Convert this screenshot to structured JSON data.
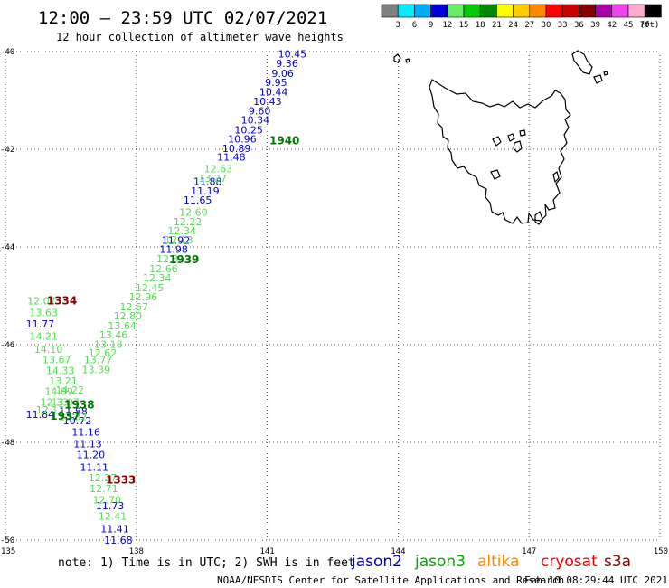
{
  "header": {
    "title": "12:00 – 23:59 UTC 02/07/2021",
    "subtitle": "12 hour collection of altimeter wave heights"
  },
  "colorbar": {
    "labels": [
      "3",
      "6",
      "9",
      "12",
      "15",
      "18",
      "21",
      "24",
      "27",
      "30",
      "33",
      "36",
      "39",
      "42",
      "45",
      "70"
    ],
    "unit": "(ft)",
    "colors": [
      "#7f7f7f",
      "#00eeff",
      "#00aaff",
      "#0000dd",
      "#66ee66",
      "#00cc00",
      "#008800",
      "#ffff00",
      "#ffcc00",
      "#ff8800",
      "#ff0000",
      "#cc0000",
      "#880000",
      "#aa00aa",
      "#ee44ee",
      "#ffaacc",
      "#000000"
    ]
  },
  "axes": {
    "lat_ticks": [
      "-40",
      "-42",
      "-44",
      "-46",
      "-48",
      "-50"
    ],
    "lon_ticks": [
      "135",
      "138",
      "141",
      "144",
      "147",
      "150"
    ]
  },
  "chart_data": {
    "type": "map",
    "lat_range": [
      -50,
      -40
    ],
    "lon_range": [
      135,
      150
    ],
    "point_series": [
      {
        "satellite": "jason2",
        "color": "#0000dd",
        "points": [
          {
            "lon": 141.25,
            "lat": -40.05,
            "v": "10.45"
          },
          {
            "lon": 141.2,
            "lat": -40.24,
            "v": "9.36"
          },
          {
            "lon": 141.1,
            "lat": -40.44,
            "v": "9.06"
          },
          {
            "lon": 140.95,
            "lat": -40.63,
            "v": "9.95"
          },
          {
            "lon": 140.82,
            "lat": -40.82,
            "v": "10.44"
          },
          {
            "lon": 140.68,
            "lat": -41.02,
            "v": "10.43"
          },
          {
            "lon": 140.57,
            "lat": -41.21,
            "v": "9.60"
          },
          {
            "lon": 140.4,
            "lat": -41.4,
            "v": "10.34"
          },
          {
            "lon": 140.25,
            "lat": -41.6,
            "v": "10.25"
          },
          {
            "lon": 140.1,
            "lat": -41.79,
            "v": "10.96"
          },
          {
            "lon": 139.97,
            "lat": -41.98,
            "v": "10.89"
          },
          {
            "lon": 139.85,
            "lat": -42.16,
            "v": "11.48"
          },
          {
            "lon": 139.31,
            "lat": -42.66,
            "v": "11.88"
          },
          {
            "lon": 139.25,
            "lat": -42.85,
            "v": "11.19"
          },
          {
            "lon": 139.08,
            "lat": -43.04,
            "v": "11.65"
          },
          {
            "lon": 138.58,
            "lat": -43.86,
            "v": "11.92"
          },
          {
            "lon": 138.53,
            "lat": -44.05,
            "v": "11.98"
          },
          {
            "lon": 135.47,
            "lat": -45.57,
            "v": "11.77"
          },
          {
            "lon": 135.47,
            "lat": -47.43,
            "v": "11.84"
          },
          {
            "lon": 136.23,
            "lat": -47.36,
            "v": "11.88"
          },
          {
            "lon": 136.32,
            "lat": -47.56,
            "v": "10.72"
          },
          {
            "lon": 136.52,
            "lat": -47.79,
            "v": "11.16"
          },
          {
            "lon": 136.56,
            "lat": -48.03,
            "v": "11.13"
          },
          {
            "lon": 136.63,
            "lat": -48.25,
            "v": "11.20"
          },
          {
            "lon": 136.71,
            "lat": -48.51,
            "v": "11.11"
          },
          {
            "lon": 137.07,
            "lat": -49.3,
            "v": "11.73"
          },
          {
            "lon": 137.18,
            "lat": -49.77,
            "v": "11.41"
          },
          {
            "lon": 137.26,
            "lat": -50.0,
            "v": "11.68"
          }
        ]
      },
      {
        "satellite": "jason3",
        "color": "#55dd55",
        "points": [
          {
            "lon": 139.55,
            "lat": -42.4,
            "v": "12.63"
          },
          {
            "lon": 139.42,
            "lat": -42.59,
            "v": "13.27"
          },
          {
            "lon": 138.98,
            "lat": -43.29,
            "v": "12.60"
          },
          {
            "lon": 138.85,
            "lat": -43.48,
            "v": "12.22"
          },
          {
            "lon": 138.72,
            "lat": -43.67,
            "v": "12.34"
          },
          {
            "lon": 138.65,
            "lat": -43.85,
            "v": "12.13"
          },
          {
            "lon": 138.46,
            "lat": -44.24,
            "v": "12.31"
          },
          {
            "lon": 138.3,
            "lat": -44.44,
            "v": "12.66"
          },
          {
            "lon": 138.15,
            "lat": -44.63,
            "v": "12.34"
          },
          {
            "lon": 137.98,
            "lat": -44.83,
            "v": "12.45"
          },
          {
            "lon": 137.83,
            "lat": -45.02,
            "v": "12.96"
          },
          {
            "lon": 137.62,
            "lat": -45.22,
            "v": "12.57"
          },
          {
            "lon": 137.48,
            "lat": -45.41,
            "v": "12.80"
          },
          {
            "lon": 137.35,
            "lat": -45.61,
            "v": "13.64"
          },
          {
            "lon": 137.15,
            "lat": -45.8,
            "v": "13.46"
          },
          {
            "lon": 137.03,
            "lat": -45.99,
            "v": "13.18"
          },
          {
            "lon": 136.9,
            "lat": -46.17,
            "v": "12.62"
          },
          {
            "lon": 136.8,
            "lat": -46.31,
            "v": "13.77"
          },
          {
            "lon": 136.75,
            "lat": -46.51,
            "v": "13.39"
          },
          {
            "lon": 135.5,
            "lat": -45.1,
            "v": "12.07"
          },
          {
            "lon": 135.55,
            "lat": -45.34,
            "v": "13.63"
          },
          {
            "lon": 135.55,
            "lat": -45.82,
            "v": "14.21"
          },
          {
            "lon": 135.66,
            "lat": -46.09,
            "v": "14.10"
          },
          {
            "lon": 135.85,
            "lat": -46.31,
            "v": "13.67"
          },
          {
            "lon": 135.93,
            "lat": -46.53,
            "v": "14.33"
          },
          {
            "lon": 136.0,
            "lat": -46.74,
            "v": "13.21"
          },
          {
            "lon": 135.9,
            "lat": -46.95,
            "v": "14.09"
          },
          {
            "lon": 136.15,
            "lat": -46.93,
            "v": "14.22"
          },
          {
            "lon": 135.8,
            "lat": -47.18,
            "v": "12.33"
          },
          {
            "lon": 136.05,
            "lat": -47.18,
            "v": "13.97"
          },
          {
            "lon": 135.7,
            "lat": -47.33,
            "v": "12.12"
          },
          {
            "lon": 136.22,
            "lat": -47.47,
            "v": "13.32"
          },
          {
            "lon": 136.9,
            "lat": -48.72,
            "v": "12.27"
          },
          {
            "lon": 136.93,
            "lat": -48.94,
            "v": "12.71"
          },
          {
            "lon": 137.0,
            "lat": -49.18,
            "v": "12.70"
          },
          {
            "lon": 137.13,
            "lat": -49.51,
            "v": "12.41"
          }
        ]
      }
    ],
    "time_labels": [
      {
        "lon": 141.05,
        "lat": -41.82,
        "v": "1940",
        "color": "#007700"
      },
      {
        "lon": 138.75,
        "lat": -44.26,
        "v": "1939",
        "color": "#007700"
      },
      {
        "lon": 136.35,
        "lat": -47.23,
        "v": "1938",
        "color": "#007700"
      },
      {
        "lon": 136.02,
        "lat": -47.46,
        "v": "1937",
        "color": "#007700"
      },
      {
        "lon": 135.95,
        "lat": -45.1,
        "v": "1334",
        "color": "#880000"
      },
      {
        "lon": 137.3,
        "lat": -48.77,
        "v": "1333",
        "color": "#880000"
      }
    ],
    "grid": true
  },
  "footer": {
    "note": "note:  1) Time is in UTC;  2) SWH is in feet",
    "legend": [
      {
        "name": "jason2",
        "color": "#0000cc"
      },
      {
        "name": "jason3",
        "color": "#00aa00"
      },
      {
        "name": "altika",
        "color": "#ff8800"
      },
      {
        "name": "cryosat",
        "color": "#ee0000"
      },
      {
        "name": "s3a",
        "color": "#880000"
      }
    ],
    "credit": "NOAA/NESDIS Center for Satellite Applications and Research",
    "timestamp": "Feb 10 08:29:44 UTC 2021"
  }
}
